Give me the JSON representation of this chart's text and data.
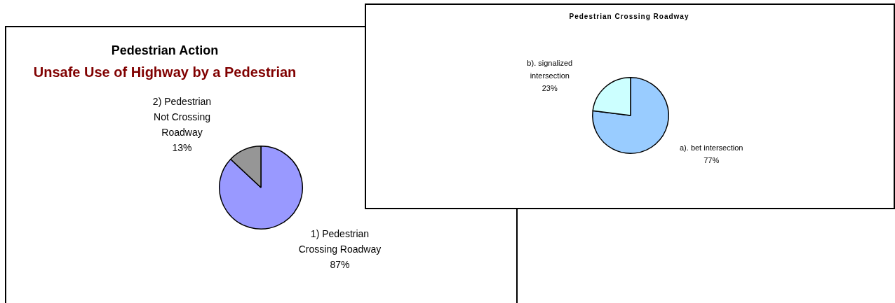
{
  "chart_data": [
    {
      "type": "pie",
      "title": "Pedestrian Action",
      "subtitle": "Unsafe Use of Highway by a Pedestrian",
      "categories": [
        "1) Pedestrian Crossing Roadway",
        "2) Pedestrian Not Crossing Roadway"
      ],
      "values": [
        87,
        13
      ],
      "colors": [
        "#9999ff",
        "#969696"
      ],
      "value_labels": [
        "87%",
        "13%"
      ]
    },
    {
      "type": "pie",
      "title": "Pedestrian Crossing Roadway",
      "categories": [
        "a). bet intersection",
        "b). signalized intersection"
      ],
      "values": [
        77,
        23
      ],
      "colors": [
        "#99ccff",
        "#ccffff"
      ],
      "value_labels": [
        "77%",
        "23%"
      ]
    }
  ]
}
